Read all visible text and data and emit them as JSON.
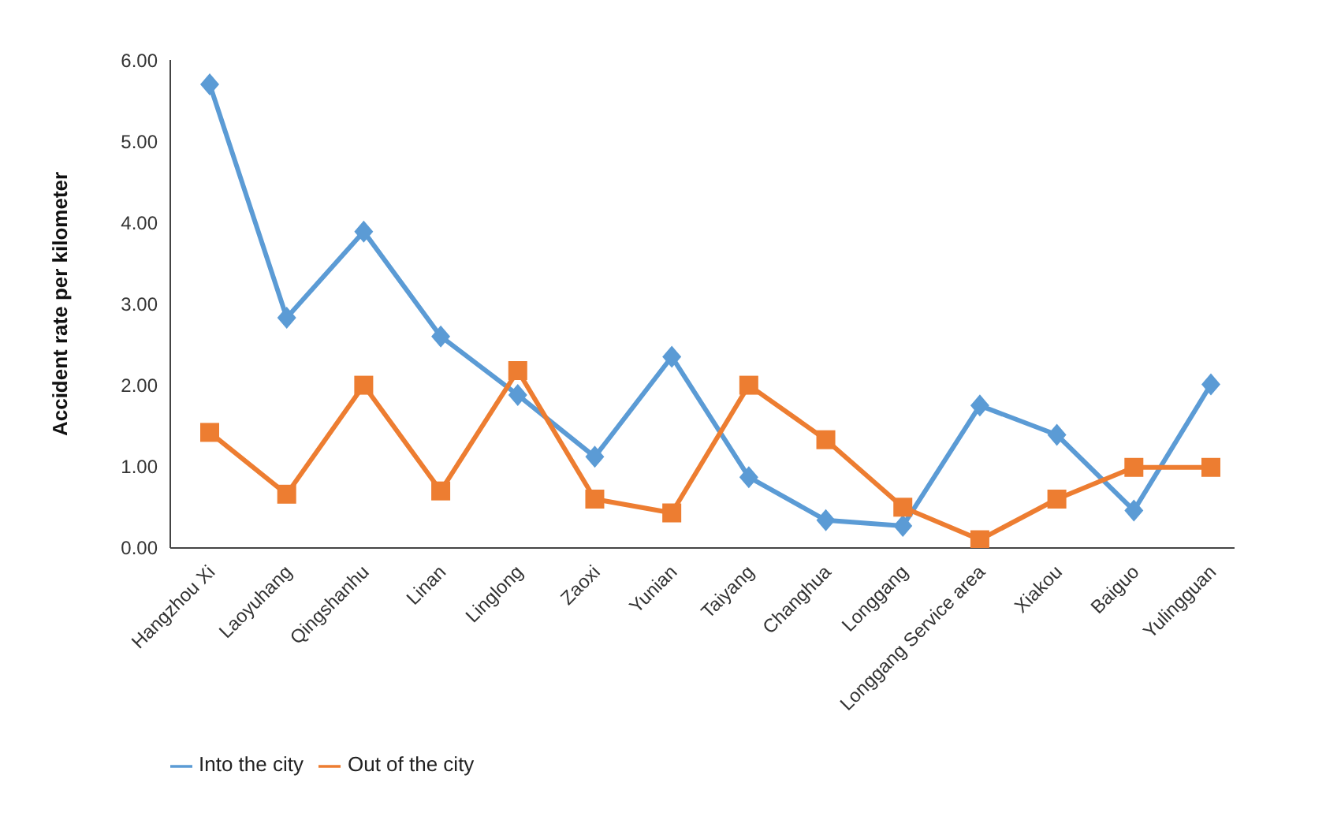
{
  "chart_data": {
    "type": "line",
    "ylabel": "Accident rate per kilometer",
    "categories": [
      "Hangzhou Xi",
      "Laoyuhang",
      "Qingshanhu",
      "Linan",
      "Linglong",
      "Zaoxi",
      "Yunian",
      "Taiyang",
      "Changhua",
      "Longgang",
      "Longgang Service area",
      "Xiakou",
      "Baiguo",
      "Yulingguan"
    ],
    "series": [
      {
        "name": "Into the city",
        "color": "#5b9bd5",
        "marker": "diamond",
        "values": [
          5.7,
          2.83,
          3.89,
          2.6,
          1.88,
          1.12,
          2.35,
          0.87,
          0.34,
          0.27,
          1.75,
          1.39,
          0.46,
          2.01
        ]
      },
      {
        "name": "Out of the city",
        "color": "#ed7d31",
        "marker": "square",
        "values": [
          1.42,
          0.66,
          2.0,
          0.7,
          2.18,
          0.6,
          0.43,
          2.0,
          1.33,
          0.5,
          0.1,
          0.6,
          0.99,
          0.99
        ]
      }
    ],
    "ylim": [
      0,
      6
    ],
    "yticks": [
      {
        "value": 0,
        "label": "0.00"
      },
      {
        "value": 1,
        "label": "1.00"
      },
      {
        "value": 2,
        "label": "2.00"
      },
      {
        "value": 3,
        "label": "3.00"
      },
      {
        "value": 4,
        "label": "4.00"
      },
      {
        "value": 5,
        "label": "5.00"
      },
      {
        "value": 6,
        "label": "6.00"
      }
    ],
    "grid": false,
    "legend": "bottom left",
    "line_style": "solid"
  }
}
